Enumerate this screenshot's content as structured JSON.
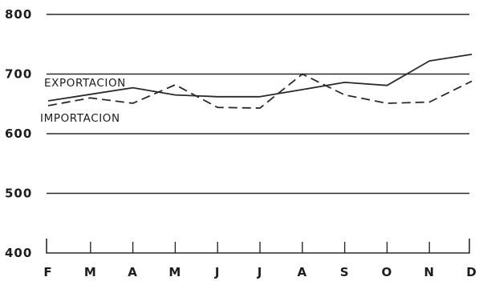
{
  "chart_data": {
    "type": "line",
    "categories": [
      "F",
      "M",
      "A",
      "M",
      "J",
      "J",
      "A",
      "S",
      "O",
      "N",
      "D"
    ],
    "series": [
      {
        "name": "EXPORTACION",
        "style": "solid",
        "values": [
          655,
          666,
          677,
          665,
          662,
          662,
          674,
          686,
          681,
          722,
          733
        ]
      },
      {
        "name": "IMPORTACION",
        "style": "dashed",
        "values": [
          647,
          660,
          651,
          682,
          644,
          643,
          700,
          665,
          651,
          653,
          688
        ]
      }
    ],
    "yticks": [
      400,
      500,
      600,
      700,
      800
    ],
    "ytick_labels": [
      "400",
      "500",
      "600",
      "700",
      "800"
    ],
    "ylim": [
      400,
      800
    ],
    "grid": true,
    "title": "",
    "xlabel": "",
    "ylabel": ""
  }
}
